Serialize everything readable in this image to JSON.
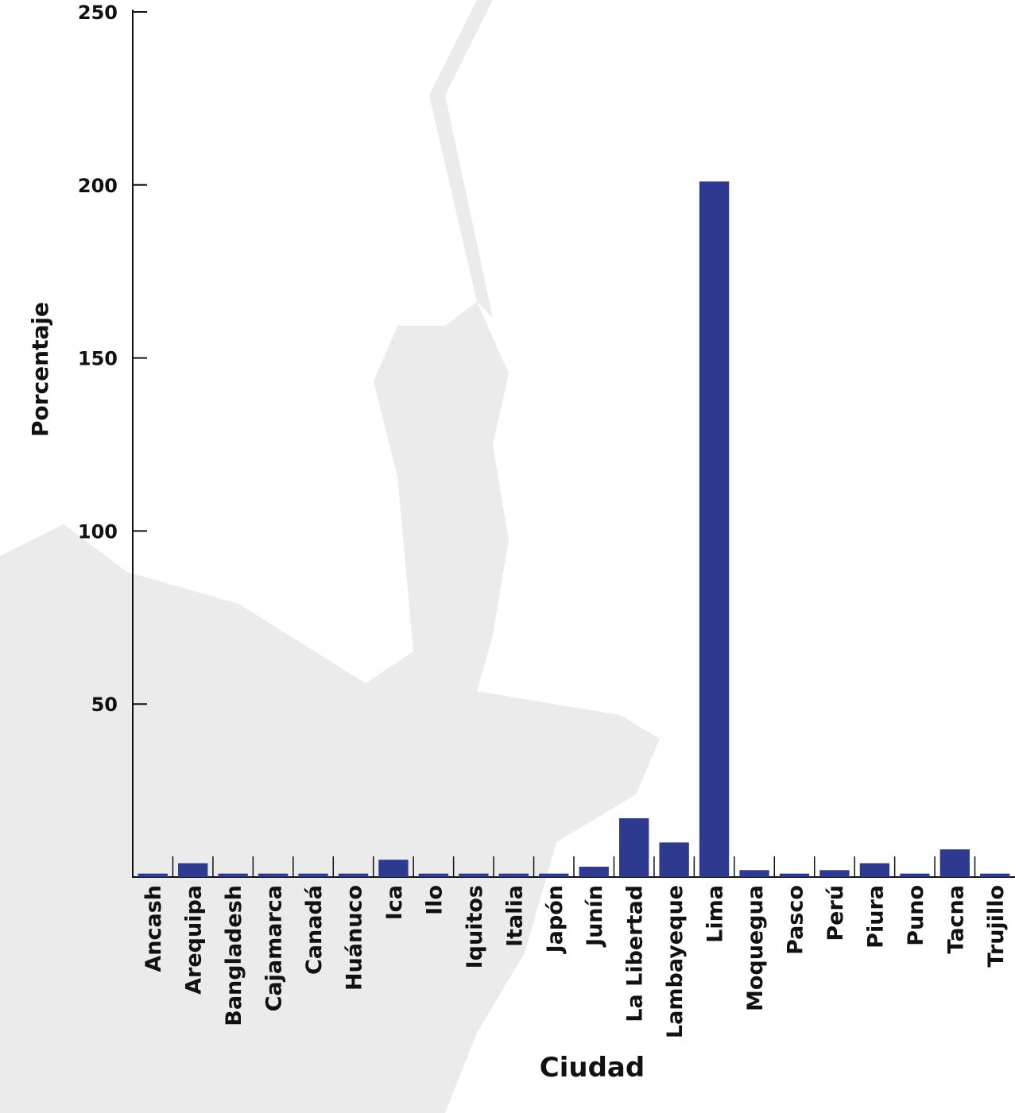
{
  "chart_data": {
    "type": "bar",
    "x_label": "Ciudad",
    "y_label": "Porcentaje",
    "categories": [
      "Ancash",
      "Arequipa",
      "Bangladesh",
      "Cajamarca",
      "Canadá",
      "Huánuco",
      "Ica",
      "Ilo",
      "Iquitos",
      "Italia",
      "Japón",
      "Junín",
      "La Libertad",
      "Lambayeque",
      "Lima",
      "Moquegua",
      "Pasco",
      "Perú",
      "Piura",
      "Puno",
      "Tacna",
      "Trujillo"
    ],
    "values": [
      1,
      4,
      1,
      1,
      1,
      1,
      5,
      1,
      1,
      1,
      1,
      3,
      17,
      10,
      201,
      2,
      1,
      2,
      4,
      1,
      8,
      1
    ],
    "color": "#2e3a8f",
    "ylim": [
      0,
      250
    ],
    "yticks": [
      50,
      100,
      150,
      200,
      250
    ]
  }
}
